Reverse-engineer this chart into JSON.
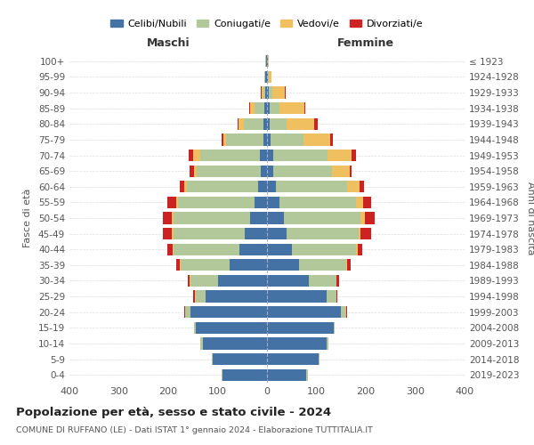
{
  "age_groups": [
    "0-4",
    "5-9",
    "10-14",
    "15-19",
    "20-24",
    "25-29",
    "30-34",
    "35-39",
    "40-44",
    "45-49",
    "50-54",
    "55-59",
    "60-64",
    "65-69",
    "70-74",
    "75-79",
    "80-84",
    "85-89",
    "90-94",
    "95-99",
    "100+"
  ],
  "birth_years": [
    "2019-2023",
    "2014-2018",
    "2009-2013",
    "2004-2008",
    "1999-2003",
    "1994-1998",
    "1989-1993",
    "1984-1988",
    "1979-1983",
    "1974-1978",
    "1969-1973",
    "1964-1968",
    "1959-1963",
    "1954-1958",
    "1949-1953",
    "1944-1948",
    "1939-1943",
    "1934-1938",
    "1929-1933",
    "1924-1928",
    "≤ 1923"
  ],
  "male": {
    "celibi": [
      90,
      110,
      130,
      145,
      155,
      125,
      100,
      75,
      55,
      45,
      35,
      25,
      18,
      12,
      15,
      8,
      7,
      5,
      3,
      3,
      2
    ],
    "coniugati": [
      2,
      2,
      5,
      2,
      10,
      20,
      55,
      100,
      135,
      145,
      155,
      155,
      145,
      130,
      120,
      75,
      40,
      20,
      5,
      2,
      1
    ],
    "vedovi": [
      0,
      0,
      0,
      0,
      1,
      1,
      1,
      1,
      1,
      2,
      3,
      3,
      5,
      5,
      15,
      5,
      10,
      10,
      3,
      1,
      0
    ],
    "divorziati": [
      0,
      0,
      0,
      1,
      2,
      3,
      5,
      8,
      10,
      18,
      18,
      18,
      8,
      10,
      8,
      3,
      2,
      1,
      1,
      0,
      0
    ]
  },
  "female": {
    "nubili": [
      80,
      105,
      120,
      135,
      150,
      120,
      85,
      65,
      50,
      40,
      35,
      25,
      18,
      12,
      12,
      8,
      5,
      5,
      3,
      2,
      2
    ],
    "coniugate": [
      2,
      2,
      5,
      2,
      10,
      20,
      55,
      95,
      130,
      145,
      155,
      155,
      145,
      120,
      110,
      65,
      35,
      20,
      8,
      2,
      0
    ],
    "vedove": [
      0,
      0,
      0,
      0,
      1,
      1,
      1,
      2,
      3,
      5,
      8,
      15,
      25,
      35,
      50,
      55,
      55,
      50,
      25,
      5,
      1
    ],
    "divorziate": [
      0,
      0,
      0,
      0,
      2,
      2,
      5,
      8,
      10,
      20,
      20,
      15,
      8,
      5,
      8,
      5,
      8,
      2,
      1,
      0,
      0
    ]
  },
  "colors": {
    "celibi": "#4472a4",
    "coniugati": "#b3c89a",
    "vedovi": "#f0c060",
    "divorziati": "#cc2222"
  },
  "xlim": [
    -400,
    400
  ],
  "xticks": [
    -400,
    -300,
    -200,
    -100,
    0,
    100,
    200,
    300,
    400
  ],
  "xticklabels": [
    "400",
    "300",
    "200",
    "100",
    "0",
    "100",
    "200",
    "300",
    "400"
  ],
  "title": "Popolazione per età, sesso e stato civile - 2024",
  "subtitle": "COMUNE DI RUFFANO (LE) - Dati ISTAT 1° gennaio 2024 - Elaborazione TUTTITALIA.IT",
  "ylabel": "Fasce di età",
  "ylabel_right": "Anni di nascita",
  "legend_labels": [
    "Celibi/Nubili",
    "Coniugati/e",
    "Vedovi/e",
    "Divorziati/e"
  ],
  "figsize": [
    6.0,
    5.0
  ],
  "dpi": 100
}
